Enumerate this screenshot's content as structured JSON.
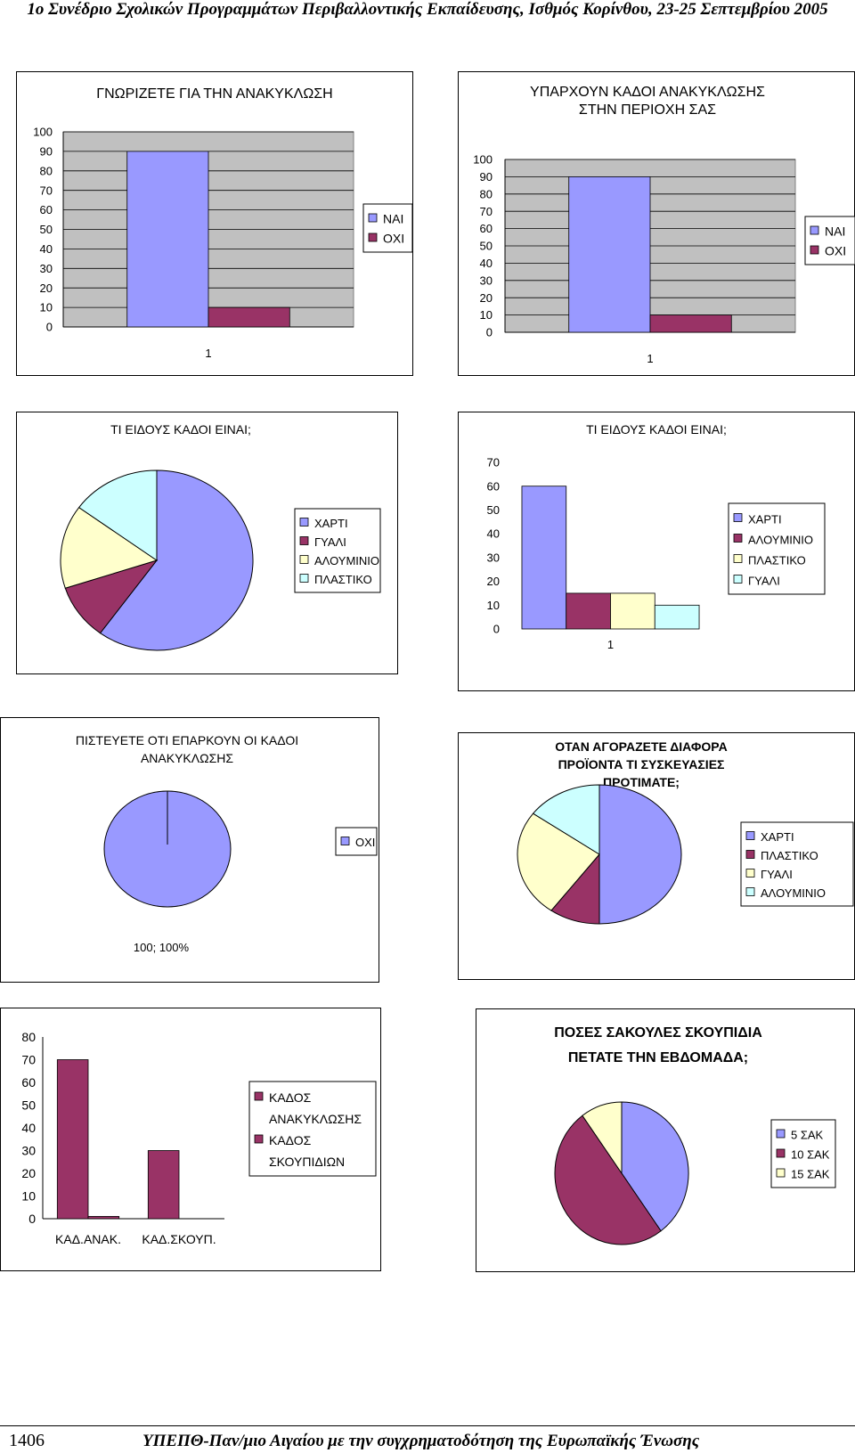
{
  "page": {
    "header": "1ο Συνέδριο Σχολικών Προγραμμάτων Περιβαλλοντικής Εκπαίδευσης, Ισθμός Κορίνθου, 23-25 Σεπτεμβρίου 2005",
    "page_number": "1406",
    "footer": "ΥΠΕΠΘ-Παν/μιο Αιγαίου με την συγχρηματοδότηση της Ευρωπαϊκής Ένωσης"
  },
  "colors": {
    "c1": "#9999ff",
    "c2": "#993366",
    "c3": "#ffffcc",
    "c4": "#ccffff",
    "plot_bg": "#c0c0c0"
  },
  "chart_data": [
    {
      "type": "bar",
      "title": "ΓΝΩΡΙΖΕΤΕ ΓΙΑ ΤΗΝ ΑΝΑΚΥΚΛΩΣΗ",
      "categories": [
        "1"
      ],
      "series": [
        {
          "name": "ΝΑΙ",
          "values": [
            90
          ]
        },
        {
          "name": "ΟΧΙ",
          "values": [
            10
          ]
        }
      ],
      "ylim": [
        0,
        100
      ],
      "yticks": [
        "0",
        "10",
        "20",
        "30",
        "40",
        "50",
        "60",
        "70",
        "80",
        "90",
        "100"
      ],
      "legend": "right"
    },
    {
      "type": "bar",
      "title": "ΥΠΑΡΧΟΥΝ ΚΑΔΟΙ ΑΝΑΚΥΚΛΩΣΗΣ ΣΤΗΝ ΠΕΡΙΟΧΗ ΣΑΣ",
      "title_lines": [
        "ΥΠΑΡΧΟΥΝ ΚΑΔΟΙ ΑΝΑΚΥΚΛΩΣΗΣ",
        "ΣΤΗΝ ΠΕΡΙΟΧΗ ΣΑΣ"
      ],
      "categories": [
        "1"
      ],
      "series": [
        {
          "name": "ΝΑΙ",
          "values": [
            90
          ]
        },
        {
          "name": "ΟΧΙ",
          "values": [
            10
          ]
        }
      ],
      "ylim": [
        0,
        100
      ],
      "yticks": [
        "0",
        "10",
        "20",
        "30",
        "40",
        "50",
        "60",
        "70",
        "80",
        "90",
        "100"
      ],
      "legend": "right"
    },
    {
      "type": "pie",
      "title": "ΤΙ ΕΙΔΟΥΣ ΚΑΔΟΙ ΕΙΝΑΙ;",
      "labels": [
        "ΧΑΡΤΙ",
        "ΓΥΑΛΙ",
        "ΑΛΟΥΜΙΝΙΟ",
        "ΠΛΑΣΤΙΚΟ"
      ],
      "values": [
        60,
        10,
        15,
        15
      ],
      "legend": "right"
    },
    {
      "type": "bar",
      "title": "ΤΙ ΕΙΔΟΥΣ ΚΑΔΟΙ ΕΙΝΑΙ;",
      "categories": [
        "1"
      ],
      "series": [
        {
          "name": "ΧΑΡΤΙ",
          "values": [
            60
          ]
        },
        {
          "name": "ΑΛΟΥΜΙΝΙΟ",
          "values": [
            15
          ]
        },
        {
          "name": "ΠΛΑΣΤΙΚΟ",
          "values": [
            15
          ]
        },
        {
          "name": "ΓΥΑΛΙ",
          "values": [
            10
          ]
        }
      ],
      "ylim": [
        0,
        70
      ],
      "yticks": [
        "0",
        "10",
        "20",
        "30",
        "40",
        "50",
        "60",
        "70"
      ],
      "legend": "right"
    },
    {
      "type": "pie",
      "title": "ΠΙΣΤΕΥΕΤΕ ΟΤΙ ΕΠΑΡΚΟΥΝ ΟΙ ΚΑΔΟΙ ΑΝΑΚΥΚΛΩΣΗΣ",
      "title_lines": [
        "ΠΙΣΤΕΥΕΤΕ ΟΤΙ ΕΠΑΡΚΟΥΝ ΟΙ ΚΑΔΟΙ",
        "ΑΝΑΚΥΚΛΩΣΗΣ"
      ],
      "labels": [
        "ΟΧΙ"
      ],
      "values": [
        100
      ],
      "data_label": "100; 100%",
      "legend": "right"
    },
    {
      "type": "pie",
      "title": "ΟΤΑΝ ΑΓΟΡΑΖΕΤΕ ΔΙΑΦΟΡΑ ΠΡΟΪΟΝΤΑ ΤΙ ΣΥΣΚΕΥΑΣΙΕΣ ΠΡΟΤΙΜΑΤΕ;",
      "title_lines": [
        "ΟΤΑΝ ΑΓΟΡΑΖΕΤΕ ΔΙΑΦΟΡΑ",
        "ΠΡΟΪΟΝΤΑ ΤΙ ΣΥΣΚΕΥΑΣΙΕΣ",
        "ΠΡΟΤΙΜΑΤΕ;"
      ],
      "labels": [
        "ΧΑΡΤΙ",
        "ΠΛΑΣΤΙΚΟ",
        "ΓΥΑΛΙ",
        "ΑΛΟΥΜΙΝΙΟ"
      ],
      "values": [
        50,
        10,
        25,
        15
      ],
      "legend": "right"
    },
    {
      "type": "bar",
      "categories": [
        "ΚΑΔ.ΑΝΑΚ.",
        "ΚΑΔ.ΣΚΟΥΠ."
      ],
      "series": [
        {
          "name": "ΚΑΔΟΣ ΑΝΑΚΥΚΛΩΣΗΣ",
          "values": [
            70,
            30
          ]
        },
        {
          "name": "ΚΑΔΟΣ ΣΚΟΥΠΙΔΙΩΝ",
          "values": [
            1,
            0
          ]
        }
      ],
      "legend_lines": [
        [
          "ΚΑΔΟΣ",
          "ΑΝΑΚΥΚΛΩΣΗΣ"
        ],
        [
          "ΚΑΔΟΣ",
          "ΣΚΟΥΠΙΔΙΩΝ"
        ]
      ],
      "ylim": [
        0,
        80
      ],
      "yticks": [
        "0",
        "10",
        "20",
        "30",
        "40",
        "50",
        "60",
        "70",
        "80"
      ],
      "grid": false,
      "legend": "right"
    },
    {
      "type": "pie",
      "title": "ΠΟΣΕΣ ΣΑΚΟΥΛΕΣ ΣΚΟΥΠΙΔΙΑ ΠΕΤΑΤΕ ΤΗΝ ΕΒΔΟΜΑΔΑ;",
      "title_lines": [
        "ΠΟΣΕΣ ΣΑΚΟΥΛΕΣ ΣΚΟΥΠΙΔΙΑ",
        "ΠΕΤΑΤΕ ΤΗΝ ΕΒΔΟΜΑΔΑ;"
      ],
      "labels": [
        "5 ΣΑΚ",
        "10 ΣΑΚ",
        "15 ΣΑΚ"
      ],
      "values": [
        40,
        50,
        10
      ],
      "legend": "right"
    }
  ]
}
